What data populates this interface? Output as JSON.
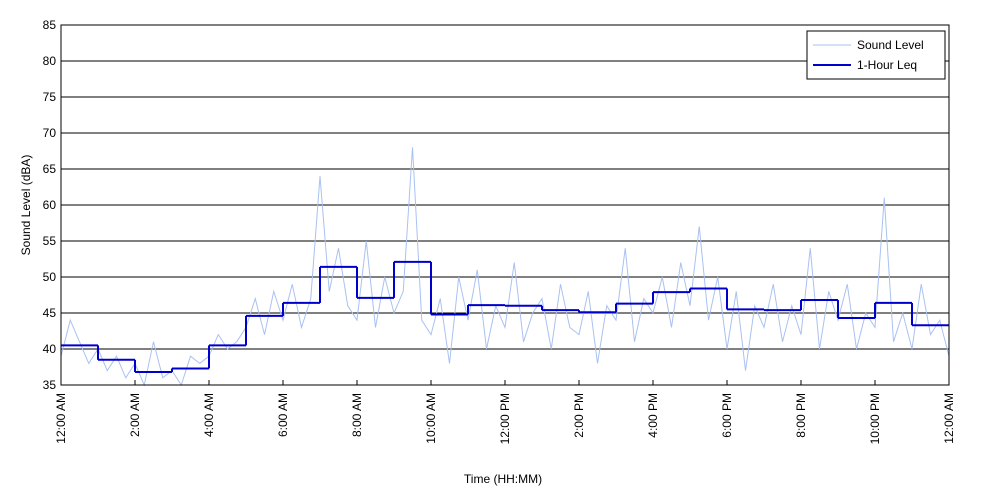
{
  "chart_data": {
    "type": "line",
    "xlabel": "Time (HH:MM)",
    "ylabel": "Sound Level (dBA)",
    "xlim": [
      0,
      24
    ],
    "ylim": [
      35,
      85
    ],
    "xticks": [
      {
        "value": 0,
        "label": "12:00 AM"
      },
      {
        "value": 2,
        "label": "2:00 AM"
      },
      {
        "value": 4,
        "label": "4:00 AM"
      },
      {
        "value": 6,
        "label": "6:00 AM"
      },
      {
        "value": 8,
        "label": "8:00 AM"
      },
      {
        "value": 10,
        "label": "10:00 AM"
      },
      {
        "value": 12,
        "label": "12:00 PM"
      },
      {
        "value": 14,
        "label": "2:00 PM"
      },
      {
        "value": 16,
        "label": "4:00 PM"
      },
      {
        "value": 18,
        "label": "6:00 PM"
      },
      {
        "value": 20,
        "label": "8:00 PM"
      },
      {
        "value": 22,
        "label": "10:00 PM"
      },
      {
        "value": 24,
        "label": "12:00 AM"
      }
    ],
    "yticks": [
      35,
      40,
      45,
      50,
      55,
      60,
      65,
      70,
      75,
      80,
      85
    ],
    "grid": true,
    "legend": "upper right",
    "series": [
      {
        "name": "Sound Level",
        "color": "#a9c1f2",
        "drawstyle": "default",
        "x": [
          0,
          0.25,
          0.5,
          0.75,
          1,
          1.25,
          1.5,
          1.75,
          2,
          2.25,
          2.5,
          2.75,
          3,
          3.25,
          3.5,
          3.75,
          4,
          4.25,
          4.5,
          4.75,
          5,
          5.25,
          5.5,
          5.75,
          6,
          6.25,
          6.5,
          6.75,
          7,
          7.25,
          7.5,
          7.75,
          8,
          8.25,
          8.5,
          8.75,
          9,
          9.25,
          9.5,
          9.75,
          10,
          10.25,
          10.5,
          10.75,
          11,
          11.25,
          11.5,
          11.75,
          12,
          12.25,
          12.5,
          12.75,
          13,
          13.25,
          13.5,
          13.75,
          14,
          14.25,
          14.5,
          14.75,
          15,
          15.25,
          15.5,
          15.75,
          16,
          16.25,
          16.5,
          16.75,
          17,
          17.25,
          17.5,
          17.75,
          18,
          18.25,
          18.5,
          18.75,
          19,
          19.25,
          19.5,
          19.75,
          20,
          20.25,
          20.5,
          20.75,
          21,
          21.25,
          21.5,
          21.75,
          22,
          22.25,
          22.5,
          22.75,
          23,
          23.25,
          23.5,
          23.75,
          24
        ],
        "values": [
          39,
          44,
          41,
          38,
          40,
          37,
          39,
          36,
          38,
          35,
          41,
          36,
          37,
          35,
          39,
          38,
          39,
          42,
          40,
          41,
          43,
          47,
          42,
          48,
          44,
          49,
          43,
          47,
          64,
          48,
          54,
          46,
          44,
          55,
          43,
          50,
          45,
          48,
          68,
          44,
          42,
          47,
          38,
          50,
          44,
          51,
          40,
          46,
          43,
          52,
          41,
          45,
          47,
          40,
          49,
          43,
          42,
          48,
          38,
          46,
          44,
          54,
          41,
          47,
          45,
          50,
          43,
          52,
          46,
          57,
          44,
          50,
          40,
          48,
          37,
          46,
          43,
          49,
          41,
          46,
          42,
          54,
          40,
          48,
          44,
          49,
          40,
          45,
          43,
          61,
          41,
          45,
          40,
          49,
          42,
          44,
          39
        ]
      },
      {
        "name": "1-Hour Leq",
        "color": "#0000cc",
        "drawstyle": "steps-post",
        "x": [
          0,
          1,
          2,
          3,
          4,
          5,
          6,
          7,
          8,
          9,
          10,
          11,
          12,
          13,
          14,
          15,
          16,
          17,
          18,
          19,
          20,
          21,
          22,
          23
        ],
        "values": [
          40.5,
          38.5,
          36.8,
          37.3,
          40.5,
          44.6,
          46.4,
          51.4,
          47.1,
          52.1,
          44.8,
          46.1,
          46.0,
          45.4,
          45.1,
          46.3,
          47.9,
          48.4,
          45.5,
          45.4,
          46.8,
          44.3,
          46.4,
          43.3
        ]
      }
    ]
  }
}
